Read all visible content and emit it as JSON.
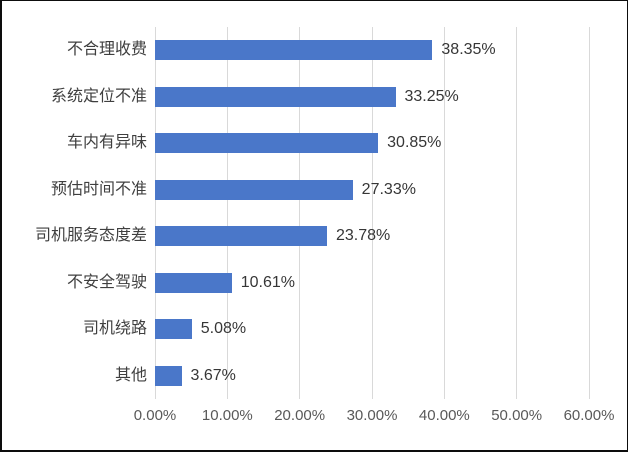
{
  "chart_data": {
    "type": "bar",
    "orientation": "horizontal",
    "title": "",
    "xlabel": "",
    "ylabel": "",
    "categories": [
      "不合理收费",
      "系统定位不准",
      "车内有异味",
      "预估时间不准",
      "司机服务态度差",
      "不安全驾驶",
      "司机绕路",
      "其他"
    ],
    "values": [
      38.35,
      33.25,
      30.85,
      27.33,
      23.78,
      10.61,
      5.08,
      3.67
    ],
    "value_labels": [
      "38.35%",
      "33.25%",
      "30.85%",
      "27.33%",
      "23.78%",
      "10.61%",
      "5.08%",
      "3.67%"
    ],
    "x_tick_values": [
      0,
      10,
      20,
      30,
      40,
      50,
      60
    ],
    "x_tick_labels": [
      "0.00%",
      "10.00%",
      "20.00%",
      "30.00%",
      "40.00%",
      "50.00%",
      "60.00%"
    ],
    "xlim": [
      0,
      60
    ],
    "grid": true,
    "legend": false,
    "colors": {
      "bar": "#4A77C9",
      "gridline": "#D9D9D9",
      "tick_label": "#595959",
      "value_label": "#363636",
      "category_label": "#3F3F3F",
      "background": "#FFFFFF",
      "frame_border": "#0D0D0D"
    }
  }
}
